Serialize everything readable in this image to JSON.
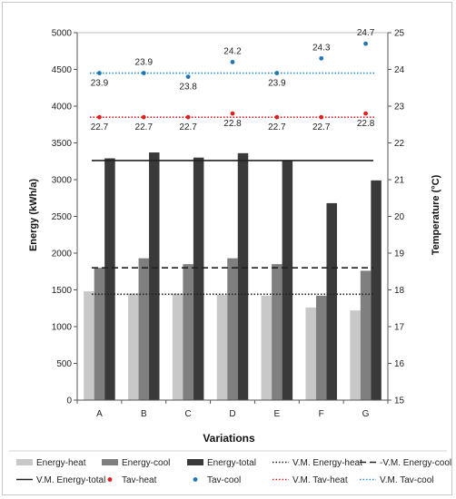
{
  "chart_data": {
    "type": "bar",
    "categories": [
      "A",
      "B",
      "C",
      "D",
      "E",
      "F",
      "G"
    ],
    "xlabel": "Variations",
    "ylabel": "Energy (kWh/a)",
    "y2label": "Temperature (°C)",
    "ylim": [
      0,
      5000
    ],
    "y2lim": [
      15,
      25
    ],
    "yticks": [
      0,
      500,
      1000,
      1500,
      2000,
      2500,
      3000,
      3500,
      4000,
      4500,
      5000
    ],
    "y2ticks": [
      15,
      16,
      17,
      18,
      19,
      20,
      21,
      22,
      23,
      24,
      25
    ],
    "legend_position": "bottom",
    "grid": false,
    "series": [
      {
        "name": "Energy-heat",
        "kind": "bar",
        "axis": "left",
        "color": "#c8c8c8",
        "values": [
          1480,
          1450,
          1450,
          1430,
          1420,
          1260,
          1220
        ]
      },
      {
        "name": "Energy-cool",
        "kind": "bar",
        "axis": "left",
        "color": "#7f7f7f",
        "values": [
          1800,
          1930,
          1850,
          1930,
          1850,
          1420,
          1760
        ]
      },
      {
        "name": "Energy-total",
        "kind": "bar",
        "axis": "left",
        "color": "#3a3a3a",
        "values": [
          3290,
          3370,
          3300,
          3360,
          3260,
          2680,
          2990
        ]
      },
      {
        "name": "Tav-heat",
        "kind": "point",
        "axis": "right",
        "color": "#e02020",
        "values": [
          22.7,
          22.7,
          22.7,
          22.8,
          22.7,
          22.7,
          22.8
        ],
        "labels": [
          "22.7",
          "22.7",
          "22.7",
          "22.8",
          "22.7",
          "22.7",
          "22.8"
        ]
      },
      {
        "name": "Tav-cool",
        "kind": "point",
        "axis": "right",
        "color": "#1f77b4",
        "values": [
          23.9,
          23.9,
          23.8,
          24.2,
          23.9,
          24.3,
          24.7
        ],
        "labels": [
          "23.9",
          "23.9",
          "23.8",
          "24.2",
          "23.9",
          "24.3",
          "24.7"
        ]
      }
    ],
    "reference_lines": [
      {
        "name": "V.M. Energy-heat",
        "axis": "left",
        "value": 1440,
        "style": "dotted",
        "color": "#222222"
      },
      {
        "name": "-V.M. Energy-cool",
        "axis": "left",
        "value": 1800,
        "style": "dashed",
        "color": "#222222"
      },
      {
        "name": "V.M. Energy-total",
        "axis": "left",
        "value": 3260,
        "style": "solid",
        "color": "#222222"
      },
      {
        "name": "V.M. Tav-heat",
        "axis": "right",
        "value": 22.7,
        "style": "dotted",
        "color": "#e02020"
      },
      {
        "name": "V.M. Tav-cool",
        "axis": "right",
        "value": 23.9,
        "style": "dotted",
        "color": "#2a8cc8"
      }
    ],
    "legend": [
      {
        "label": "Energy-heat",
        "symbol": "bar",
        "color": "#c8c8c8"
      },
      {
        "label": "Energy-cool",
        "symbol": "bar",
        "color": "#7f7f7f"
      },
      {
        "label": "Energy-total",
        "symbol": "bar",
        "color": "#3a3a3a"
      },
      {
        "label": "V.M. Energy-heat",
        "symbol": "dotted",
        "color": "#222222"
      },
      {
        "label": "-V.M. Energy-cool",
        "symbol": "dashed",
        "color": "#222222"
      },
      {
        "label": "V.M. Energy-total",
        "symbol": "solid",
        "color": "#222222"
      },
      {
        "label": "Tav-heat",
        "symbol": "dot",
        "color": "#e02020"
      },
      {
        "label": "Tav-cool",
        "symbol": "dot",
        "color": "#1f77b4"
      },
      {
        "label": "V.M. Tav-heat",
        "symbol": "dotted",
        "color": "#e02020"
      },
      {
        "label": "V.M. Tav-cool",
        "symbol": "dotted",
        "color": "#2a8cc8"
      }
    ]
  }
}
